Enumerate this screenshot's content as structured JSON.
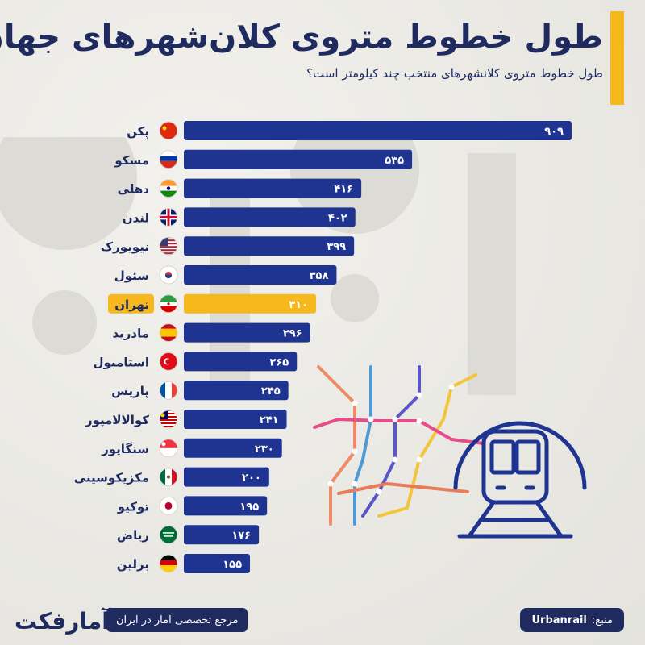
{
  "header": {
    "title": "طول خطوط متروی کلان‌شهرهای جهان",
    "subtitle": "طول خطوط متروی کلانشهرهای منتخب چند کیلومتر است؟"
  },
  "colors": {
    "bar": "#1e3490",
    "highlight": "#f6b81c",
    "text": "#1f2a5e",
    "accent": "#f6b81c"
  },
  "chart_data": {
    "type": "bar",
    "orientation": "horizontal",
    "categories": [
      "پکن",
      "مسکو",
      "دهلی",
      "لندن",
      "نیویورک",
      "سئول",
      "تهران",
      "مادرید",
      "استامبول",
      "پاریس",
      "کوالالامپور",
      "سنگاپور",
      "مکزیکوسیتی",
      "توکیو",
      "ریاض",
      "برلین"
    ],
    "values": [
      909,
      535,
      416,
      402,
      399,
      358,
      310,
      296,
      265,
      245,
      241,
      230,
      200,
      195,
      176,
      155
    ],
    "value_labels": [
      "۹۰۹",
      "۵۳۵",
      "۴۱۶",
      "۴۰۲",
      "۳۹۹",
      "۳۵۸",
      "۳۱۰",
      "۲۹۶",
      "۲۶۵",
      "۲۴۵",
      "۲۴۱",
      "۲۳۰",
      "۲۰۰",
      "۱۹۵",
      "۱۷۶",
      "۱۵۵"
    ],
    "highlight": "تهران",
    "flags": [
      "china-flag-icon",
      "russia-flag-icon",
      "india-flag-icon",
      "uk-flag-icon",
      "usa-flag-icon",
      "south-korea-flag-icon",
      "iran-flag-icon",
      "spain-flag-icon",
      "turkey-flag-icon",
      "france-flag-icon",
      "malaysia-flag-icon",
      "singapore-flag-icon",
      "mexico-flag-icon",
      "japan-flag-icon",
      "saudi-flag-icon",
      "germany-flag-icon"
    ],
    "xlim": [
      0,
      909
    ],
    "grid": false,
    "legend": "none"
  },
  "footer": {
    "brand": "آمارفکت",
    "tagline": "مرجع تخصصی آمار در ایران",
    "source_label": "منبع:",
    "source_value": "Urbanrail"
  }
}
